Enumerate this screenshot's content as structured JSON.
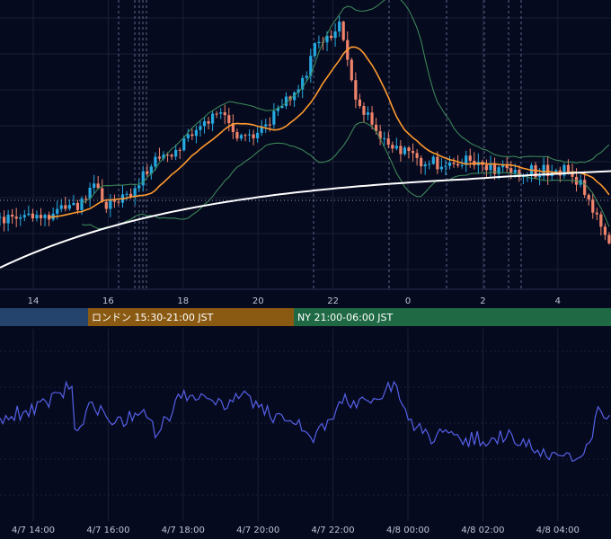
{
  "colors": {
    "background": "#060a1f",
    "grid": "#1c2036",
    "candle_up": "#26a9e0",
    "candle_down": "#f0846b",
    "sma_short": "#ff9a2e",
    "sma_long": "#ffffff",
    "bollinger": "#3f8f5a",
    "oscillator": "#5560e8",
    "session_tokyo": "#24446e",
    "session_london": "#8a5a12",
    "session_ny": "#1f6a45"
  },
  "sessions": [
    {
      "name": "tokyo",
      "label": "",
      "color": "#24446e",
      "start": "4/7 09:00",
      "end": "4/7 15:30"
    },
    {
      "name": "london",
      "label": "ロンドン 15:30-21:00 JST",
      "color": "#8a5a12",
      "start": "4/7 15:30",
      "end": "4/7 21:00"
    },
    {
      "name": "ny",
      "label": "NY 21:00-06:00 JST",
      "color": "#1f6a45",
      "start": "4/7 21:00",
      "end": "4/8 06:00"
    }
  ],
  "chart_data": [
    {
      "type": "candlestick",
      "indicators": [
        "SMA short (orange)",
        "SMA long (white)",
        "Bollinger Bands (green)"
      ],
      "x_tick_labels": [
        "14",
        "16",
        "18",
        "20",
        "22",
        "0",
        "2",
        "4"
      ],
      "grid": true,
      "reference_line": "dotted horizontal at last price",
      "event_markers": [
        "4/7 16:15",
        "4/7 16:45",
        "4/7 16:50",
        "4/7 16:55",
        "4/7 17:00",
        "4/7 21:45",
        "4/7 23:40",
        "4/8 01:00",
        "4/8 02:00",
        "4/8 02:40",
        "4/8 03:00"
      ]
    },
    {
      "type": "line",
      "x_tick_labels": [
        "4/7 14:00",
        "4/7 16:00",
        "4/7 18:00",
        "4/7 20:00",
        "4/7 22:00",
        "4/8 00:00",
        "4/8 02:00",
        "4/8 04:00"
      ],
      "grid": true,
      "series_color": "#5560e8"
    }
  ]
}
